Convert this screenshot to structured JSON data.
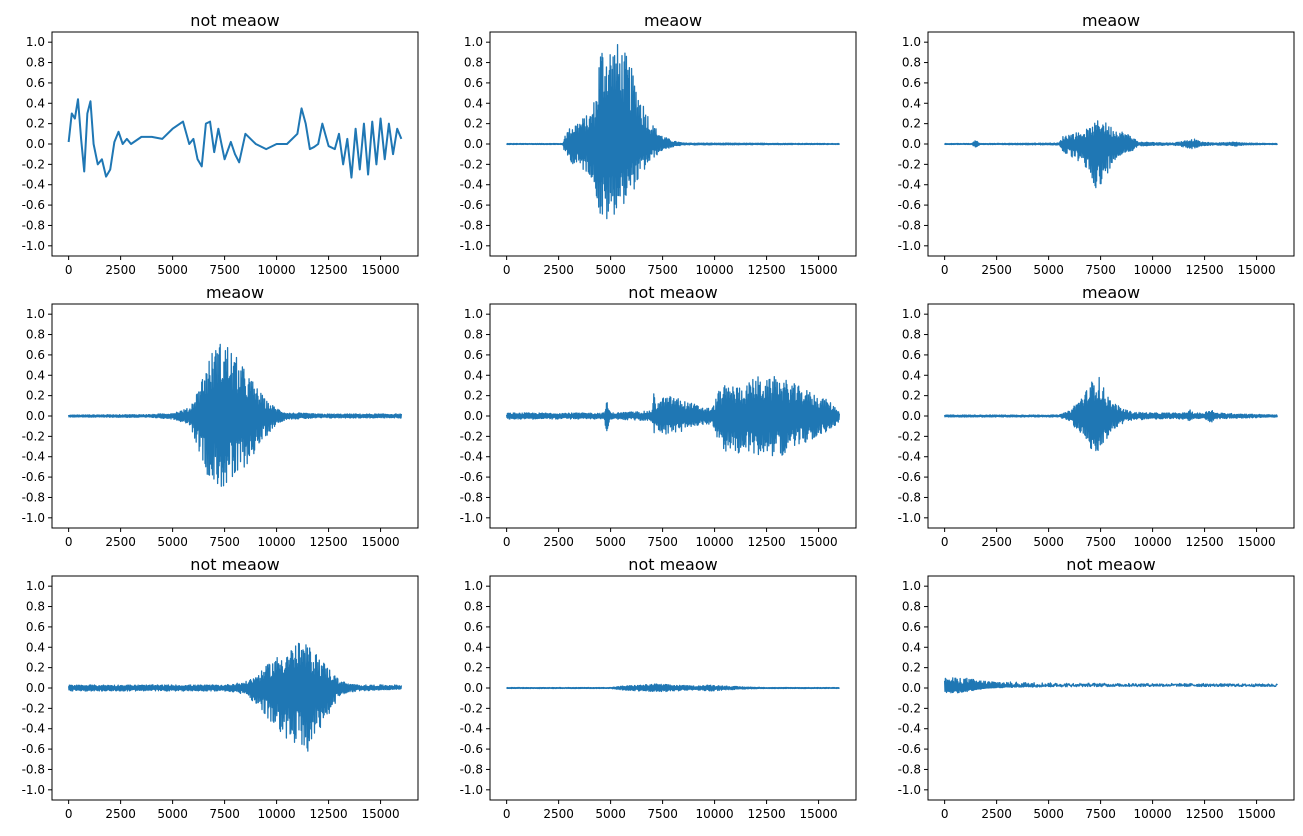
{
  "chart_data": [
    {
      "type": "line",
      "title": "not meaow",
      "ylim": [
        -1.1,
        1.1
      ],
      "xlim": [
        -800,
        16800
      ],
      "x_ticks": [
        "0",
        "2500",
        "5000",
        "7500",
        "10000",
        "12500",
        "15000"
      ],
      "y_ticks": [
        "1.0",
        "0.8",
        "0.6",
        "0.4",
        "0.2",
        "0.0",
        "-0.2",
        "-0.4",
        "-0.6",
        "-0.8",
        "-1.0"
      ],
      "series": [
        {
          "color": "#1f77b4",
          "x": [
            0,
            150,
            300,
            450,
            600,
            750,
            900,
            1050,
            1200,
            1400,
            1600,
            1800,
            2000,
            2200,
            2400,
            2600,
            2800,
            3000,
            3500,
            4000,
            4500,
            5000,
            5500,
            5800,
            6000,
            6200,
            6400,
            6600,
            6800,
            7000,
            7200,
            7500,
            7800,
            8000,
            8200,
            8500,
            9000,
            9500,
            10000,
            10500,
            11000,
            11200,
            11400,
            11600,
            11800,
            12000,
            12200,
            12500,
            12800,
            13000,
            13200,
            13400,
            13600,
            13800,
            14000,
            14200,
            14400,
            14600,
            14800,
            15000,
            15200,
            15400,
            15600,
            15800,
            16000
          ],
          "y": [
            0.02,
            0.3,
            0.25,
            0.44,
            0.05,
            -0.27,
            0.3,
            0.42,
            0.0,
            -0.2,
            -0.15,
            -0.32,
            -0.25,
            0.02,
            0.12,
            0.0,
            0.05,
            0.0,
            0.07,
            0.07,
            0.05,
            0.15,
            0.22,
            0.0,
            0.05,
            -0.15,
            -0.22,
            0.2,
            0.22,
            -0.08,
            0.15,
            -0.15,
            0.02,
            -0.1,
            -0.18,
            0.1,
            0.0,
            -0.05,
            0.0,
            0.0,
            0.1,
            0.35,
            0.2,
            -0.05,
            -0.03,
            0.0,
            0.2,
            -0.02,
            -0.05,
            0.1,
            -0.2,
            0.05,
            -0.33,
            0.15,
            -0.25,
            0.2,
            -0.3,
            0.22,
            -0.2,
            0.25,
            -0.15,
            0.2,
            -0.1,
            0.15,
            0.05
          ]
        }
      ]
    },
    {
      "type": "line",
      "title": "meaow",
      "ylim": [
        -1.1,
        1.1
      ],
      "xlim": [
        -800,
        16800
      ],
      "x_ticks": [
        "0",
        "2500",
        "5000",
        "7500",
        "10000",
        "12500",
        "15000"
      ],
      "y_ticks": [
        "1.0",
        "0.8",
        "0.6",
        "0.4",
        "0.2",
        "0.0",
        "-0.2",
        "-0.4",
        "-0.6",
        "-0.8",
        "-1.0"
      ],
      "series": [
        {
          "color": "#1f77b4",
          "x": [
            0,
            2700,
            2800,
            3200,
            3600,
            4000,
            4300,
            4500,
            4700,
            5000,
            5300,
            5600,
            6000,
            6500,
            7000,
            7500,
            8000,
            8500,
            16000
          ],
          "upper": [
            0.005,
            0.005,
            0.1,
            0.2,
            0.25,
            0.3,
            0.5,
            1.0,
            1.0,
            1.0,
            1.0,
            0.95,
            0.75,
            0.45,
            0.2,
            0.08,
            0.03,
            0.01,
            0.005
          ],
          "lower": [
            -0.005,
            -0.005,
            -0.1,
            -0.2,
            -0.25,
            -0.3,
            -0.5,
            -0.75,
            -0.8,
            -0.75,
            -0.65,
            -0.6,
            -0.5,
            -0.3,
            -0.15,
            -0.06,
            -0.03,
            -0.01,
            -0.005
          ]
        }
      ]
    },
    {
      "type": "line",
      "title": "meaow",
      "ylim": [
        -1.1,
        1.1
      ],
      "xlim": [
        -800,
        16800
      ],
      "x_ticks": [
        "0",
        "2500",
        "5000",
        "7500",
        "10000",
        "12500",
        "15000"
      ],
      "y_ticks": [
        "1.0",
        "0.8",
        "0.6",
        "0.4",
        "0.2",
        "0.0",
        "-0.2",
        "-0.4",
        "-0.6",
        "-0.8",
        "-1.0"
      ],
      "series": [
        {
          "color": "#1f77b4",
          "x": [
            0,
            1300,
            1500,
            1700,
            5500,
            5700,
            6000,
            6500,
            7000,
            7300,
            7500,
            7800,
            8200,
            8600,
            9000,
            9300,
            11000,
            11700,
            12000,
            12300,
            13000,
            14000,
            14400,
            16000
          ],
          "upper": [
            0.005,
            0.005,
            0.04,
            0.005,
            0.01,
            0.08,
            0.1,
            0.12,
            0.16,
            0.22,
            0.27,
            0.2,
            0.15,
            0.12,
            0.08,
            0.02,
            0.01,
            0.04,
            0.05,
            0.02,
            0.01,
            0.02,
            0.01,
            0.005
          ],
          "lower": [
            -0.005,
            -0.005,
            -0.04,
            -0.005,
            -0.01,
            -0.08,
            -0.12,
            -0.18,
            -0.3,
            -0.45,
            -0.5,
            -0.3,
            -0.15,
            -0.1,
            -0.07,
            -0.02,
            -0.01,
            -0.04,
            -0.05,
            -0.02,
            -0.01,
            -0.02,
            -0.01,
            -0.005
          ]
        }
      ]
    },
    {
      "type": "line",
      "title": "meaow",
      "ylim": [
        -1.1,
        1.1
      ],
      "xlim": [
        -800,
        16800
      ],
      "x_ticks": [
        "0",
        "2500",
        "5000",
        "7500",
        "10000",
        "12500",
        "15000"
      ],
      "y_ticks": [
        "1.0",
        "0.8",
        "0.6",
        "0.4",
        "0.2",
        "0.0",
        "-0.2",
        "-0.4",
        "-0.6",
        "-0.8",
        "-1.0"
      ],
      "series": [
        {
          "color": "#1f77b4",
          "x": [
            0,
            4000,
            5000,
            5800,
            6200,
            6600,
            7000,
            7500,
            8000,
            8500,
            9000,
            9500,
            10000,
            10500,
            11000,
            12000,
            16000
          ],
          "upper": [
            0.01,
            0.015,
            0.03,
            0.08,
            0.25,
            0.5,
            0.68,
            0.76,
            0.6,
            0.45,
            0.3,
            0.15,
            0.08,
            0.03,
            0.03,
            0.02,
            0.02
          ],
          "lower": [
            -0.01,
            -0.015,
            -0.03,
            -0.08,
            -0.3,
            -0.55,
            -0.68,
            -0.72,
            -0.65,
            -0.5,
            -0.35,
            -0.2,
            -0.08,
            -0.03,
            -0.03,
            -0.02,
            -0.02
          ]
        }
      ]
    },
    {
      "type": "line",
      "title": "not meaow",
      "ylim": [
        -1.1,
        1.1
      ],
      "xlim": [
        -800,
        16800
      ],
      "x_ticks": [
        "0",
        "2500",
        "5000",
        "7500",
        "10000",
        "12500",
        "15000"
      ],
      "y_ticks": [
        "1.0",
        "0.8",
        "0.6",
        "0.4",
        "0.2",
        "0.0",
        "-0.2",
        "-0.4",
        "-0.6",
        "-0.8",
        "-1.0"
      ],
      "series": [
        {
          "color": "#1f77b4",
          "x": [
            0,
            4700,
            4800,
            4900,
            5000,
            7000,
            7100,
            7200,
            7500,
            8000,
            8500,
            9000,
            9500,
            9900,
            10200,
            10500,
            11000,
            11500,
            12000,
            12500,
            13000,
            13500,
            14000,
            14500,
            15000,
            15500,
            16000
          ],
          "upper": [
            0.03,
            0.03,
            0.15,
            0.1,
            0.03,
            0.05,
            0.28,
            0.12,
            0.18,
            0.2,
            0.15,
            0.12,
            0.08,
            0.08,
            0.25,
            0.3,
            0.3,
            0.3,
            0.4,
            0.35,
            0.4,
            0.35,
            0.3,
            0.25,
            0.2,
            0.15,
            0.05
          ],
          "lower": [
            -0.03,
            -0.03,
            -0.22,
            -0.08,
            -0.03,
            -0.05,
            -0.2,
            -0.12,
            -0.18,
            -0.18,
            -0.15,
            -0.12,
            -0.08,
            -0.08,
            -0.3,
            -0.35,
            -0.38,
            -0.35,
            -0.4,
            -0.35,
            -0.42,
            -0.35,
            -0.3,
            -0.25,
            -0.2,
            -0.15,
            -0.05
          ]
        }
      ]
    },
    {
      "type": "line",
      "title": "meaow",
      "ylim": [
        -1.1,
        1.1
      ],
      "xlim": [
        -800,
        16800
      ],
      "x_ticks": [
        "0",
        "2500",
        "5000",
        "7500",
        "10000",
        "12500",
        "15000"
      ],
      "y_ticks": [
        "1.0",
        "0.8",
        "0.6",
        "0.4",
        "0.2",
        "0.0",
        "-0.2",
        "-0.4",
        "-0.6",
        "-0.8",
        "-1.0"
      ],
      "series": [
        {
          "color": "#1f77b4",
          "x": [
            0,
            5500,
            6000,
            6400,
            6800,
            7100,
            7300,
            7600,
            8000,
            8500,
            9000,
            10000,
            11500,
            11800,
            12000,
            12500,
            12800,
            13000,
            16000
          ],
          "upper": [
            0.01,
            0.01,
            0.05,
            0.15,
            0.25,
            0.35,
            0.45,
            0.3,
            0.15,
            0.08,
            0.04,
            0.03,
            0.03,
            0.06,
            0.03,
            0.03,
            0.08,
            0.03,
            0.01
          ],
          "lower": [
            -0.01,
            -0.01,
            -0.05,
            -0.15,
            -0.25,
            -0.35,
            -0.44,
            -0.3,
            -0.15,
            -0.08,
            -0.04,
            -0.03,
            -0.03,
            -0.05,
            -0.03,
            -0.03,
            -0.07,
            -0.03,
            -0.01
          ]
        }
      ]
    },
    {
      "type": "line",
      "title": "not meaow",
      "ylim": [
        -1.1,
        1.1
      ],
      "xlim": [
        -800,
        16800
      ],
      "x_ticks": [
        "0",
        "2500",
        "5000",
        "7500",
        "10000",
        "12500",
        "15000"
      ],
      "y_ticks": [
        "1.0",
        "0.8",
        "0.6",
        "0.4",
        "0.2",
        "0.0",
        "-0.2",
        "-0.4",
        "-0.6",
        "-0.8",
        "-1.0"
      ],
      "series": [
        {
          "color": "#1f77b4",
          "x": [
            0,
            2000,
            4000,
            6000,
            7500,
            8500,
            9200,
            9800,
            10500,
            11000,
            11500,
            12000,
            12500,
            13000,
            13500,
            14000,
            16000
          ],
          "upper": [
            0.03,
            0.03,
            0.03,
            0.03,
            0.03,
            0.06,
            0.15,
            0.28,
            0.38,
            0.45,
            0.42,
            0.32,
            0.2,
            0.08,
            0.04,
            0.03,
            0.03
          ],
          "lower": [
            -0.03,
            -0.03,
            -0.03,
            -0.03,
            -0.03,
            -0.06,
            -0.2,
            -0.38,
            -0.5,
            -0.6,
            -0.65,
            -0.45,
            -0.28,
            -0.08,
            -0.04,
            -0.03,
            -0.01
          ]
        }
      ]
    },
    {
      "type": "line",
      "title": "not meaow",
      "ylim": [
        -1.1,
        1.1
      ],
      "xlim": [
        -800,
        16800
      ],
      "x_ticks": [
        "0",
        "2500",
        "5000",
        "7500",
        "10000",
        "12500",
        "15000"
      ],
      "y_ticks": [
        "1.0",
        "0.8",
        "0.6",
        "0.4",
        "0.2",
        "0.0",
        "-0.2",
        "-0.4",
        "-0.6",
        "-0.8",
        "-1.0"
      ],
      "series": [
        {
          "color": "#1f77b4",
          "x": [
            0,
            5000,
            5600,
            6500,
            7200,
            8000,
            9000,
            9800,
            10500,
            11500,
            12500,
            16000
          ],
          "upper": [
            0.005,
            0.005,
            0.02,
            0.03,
            0.04,
            0.03,
            0.02,
            0.03,
            0.02,
            0.01,
            0.005,
            0.005
          ],
          "lower": [
            -0.005,
            -0.005,
            -0.02,
            -0.03,
            -0.04,
            -0.03,
            -0.02,
            -0.03,
            -0.02,
            -0.01,
            -0.005,
            -0.005
          ]
        }
      ]
    },
    {
      "type": "line",
      "title": "not meaow",
      "ylim": [
        -1.1,
        1.1
      ],
      "xlim": [
        -800,
        16800
      ],
      "x_ticks": [
        "0",
        "2500",
        "5000",
        "7500",
        "10000",
        "12500",
        "15000"
      ],
      "y_ticks": [
        "1.0",
        "0.8",
        "0.6",
        "0.4",
        "0.2",
        "0.0",
        "-0.2",
        "-0.4",
        "-0.6",
        "-0.8",
        "-1.0"
      ],
      "series": [
        {
          "color": "#1f77b4",
          "x": [
            0,
            500,
            1000,
            1500,
            2000,
            3000,
            4000,
            5000,
            6000,
            8000,
            10000,
            12000,
            14000,
            16000
          ],
          "upper": [
            0.1,
            0.1,
            0.1,
            0.08,
            0.07,
            0.06,
            0.055,
            0.05,
            0.05,
            0.045,
            0.045,
            0.045,
            0.04,
            0.04
          ],
          "lower": [
            -0.05,
            -0.05,
            -0.04,
            -0.02,
            0.0,
            0.015,
            0.025,
            0.03,
            0.035,
            0.04,
            0.04,
            0.04,
            0.04,
            0.04
          ]
        }
      ]
    }
  ]
}
